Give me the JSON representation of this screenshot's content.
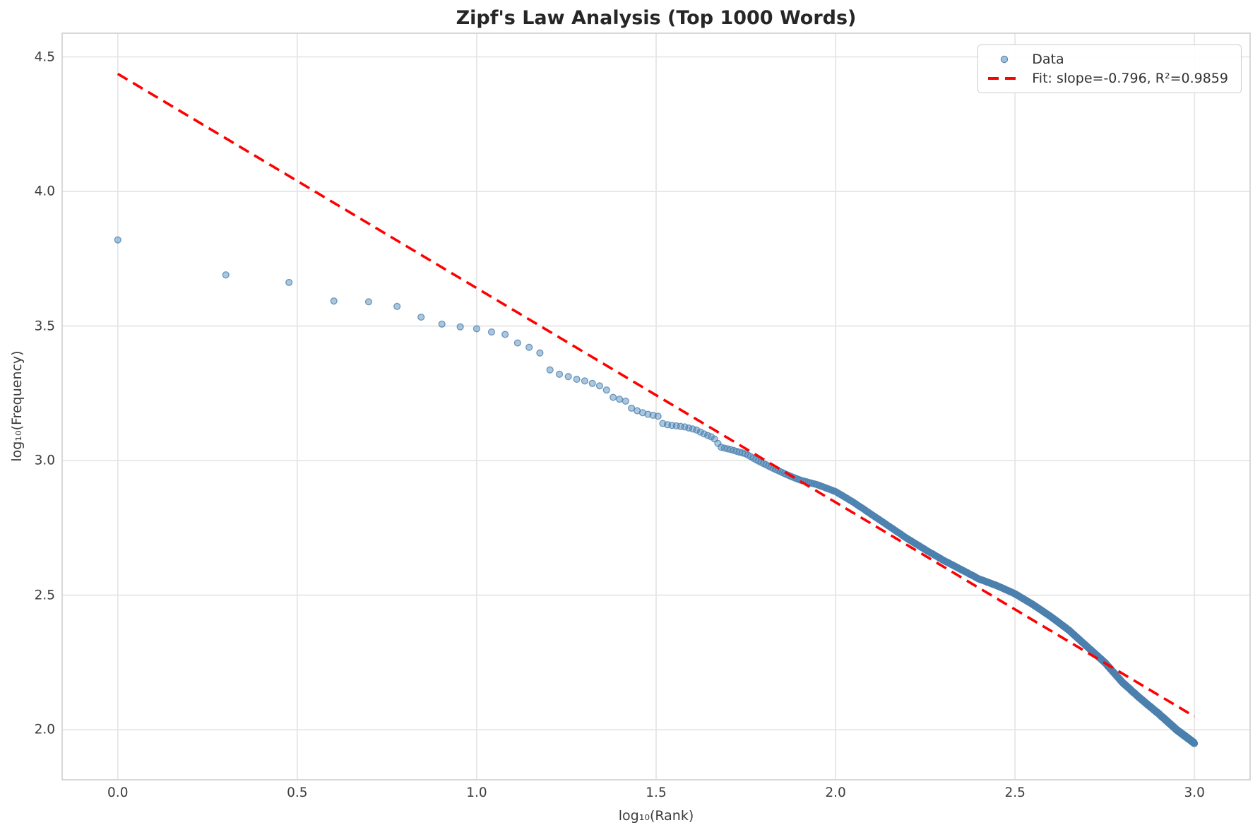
{
  "title": "Zipf's Law Analysis (Top 1000 Words)",
  "axes": {
    "xlabel": "log₁₀(Rank)",
    "ylabel": "log₁₀(Frequency)",
    "xlim": [
      -0.155,
      3.155
    ],
    "ylim": [
      1.814,
      4.588
    ],
    "xticks": [
      0.0,
      0.5,
      1.0,
      1.5,
      2.0,
      2.5,
      3.0
    ],
    "yticks": [
      2.0,
      2.5,
      3.0,
      3.5,
      4.0,
      4.5
    ],
    "grid": true
  },
  "legend": {
    "data_label": "Data",
    "fit_label": "Fit: slope=-0.796, R²=0.9859"
  },
  "colors": {
    "scatter": "#4682B4",
    "scatter_edge": "#4C81AE",
    "fit_line": "#FF0000",
    "grid": "#E6E6E6",
    "spine": "#D4D4D4",
    "title_text": "#262626",
    "tick_text": "#3C3C3C"
  },
  "chart_data": {
    "type": "scatter",
    "title": "Zipf's Law Analysis (Top 1000 Words)",
    "xlabel": "log₁₀(Rank)",
    "ylabel": "log₁₀(Frequency)",
    "legend_position": "upper right",
    "grid": true,
    "n_points": 1000,
    "x_rule": "x = log10(rank) for rank = 1..1000; y = log10(round(10^anchor_interp(x))) with frequencies forced non-increasing",
    "curve_anchors": [
      [
        0.0,
        3.82
      ],
      [
        0.301,
        3.69
      ],
      [
        0.477,
        3.662
      ],
      [
        0.602,
        3.593
      ],
      [
        0.699,
        3.59
      ],
      [
        0.778,
        3.573
      ],
      [
        0.845,
        3.533
      ],
      [
        0.903,
        3.507
      ],
      [
        0.954,
        3.497
      ],
      [
        1.0,
        3.49
      ],
      [
        1.041,
        3.478
      ],
      [
        1.079,
        3.469
      ],
      [
        1.114,
        3.437
      ],
      [
        1.146,
        3.421
      ],
      [
        1.176,
        3.4
      ],
      [
        1.204,
        3.337
      ],
      [
        1.23,
        3.321
      ],
      [
        1.255,
        3.312
      ],
      [
        1.279,
        3.302
      ],
      [
        1.301,
        3.296
      ],
      [
        1.322,
        3.287
      ],
      [
        1.342,
        3.278
      ],
      [
        1.362,
        3.262
      ],
      [
        1.38,
        3.235
      ],
      [
        1.398,
        3.228
      ],
      [
        1.415,
        3.221
      ],
      [
        1.431,
        3.195
      ],
      [
        1.447,
        3.185
      ],
      [
        1.462,
        3.178
      ],
      [
        1.477,
        3.172
      ],
      [
        1.505,
        3.165
      ],
      [
        1.52,
        3.135
      ],
      [
        1.58,
        3.125
      ],
      [
        1.61,
        3.115
      ],
      [
        1.64,
        3.095
      ],
      [
        1.66,
        3.085
      ],
      [
        1.68,
        3.05
      ],
      [
        1.71,
        3.04
      ],
      [
        1.75,
        3.025
      ],
      [
        1.783,
        3.0
      ],
      [
        1.82,
        2.975
      ],
      [
        1.86,
        2.95
      ],
      [
        1.9,
        2.928
      ],
      [
        1.95,
        2.91
      ],
      [
        2.0,
        2.885
      ],
      [
        2.05,
        2.845
      ],
      [
        2.1,
        2.8
      ],
      [
        2.15,
        2.755
      ],
      [
        2.2,
        2.71
      ],
      [
        2.255,
        2.665
      ],
      [
        2.3,
        2.63
      ],
      [
        2.35,
        2.595
      ],
      [
        2.4,
        2.56
      ],
      [
        2.45,
        2.535
      ],
      [
        2.5,
        2.505
      ],
      [
        2.55,
        2.465
      ],
      [
        2.6,
        2.42
      ],
      [
        2.65,
        2.37
      ],
      [
        2.7,
        2.31
      ],
      [
        2.75,
        2.25
      ],
      [
        2.8,
        2.175
      ],
      [
        2.85,
        2.115
      ],
      [
        2.9,
        2.06
      ],
      [
        2.95,
        2.0
      ],
      [
        3.0,
        1.95
      ]
    ],
    "fit": {
      "slope": -0.796,
      "intercept": 4.437,
      "r_squared": 0.9859,
      "x_start": 0.0,
      "x_end": 3.0,
      "style": "dashed",
      "color": "#FF0000"
    }
  }
}
